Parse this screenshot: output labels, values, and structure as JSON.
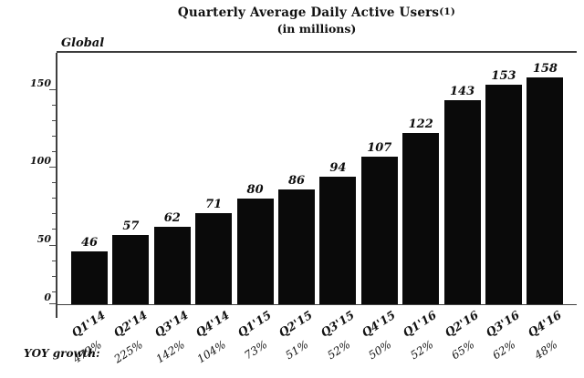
{
  "title": {
    "main": "Quarterly Average Daily Active Users",
    "footnote_marker": "(1)",
    "subtitle": "(in millions)"
  },
  "labels": {
    "region": "Global",
    "yoy_row": "YOY growth:"
  },
  "chart_data": {
    "type": "bar",
    "title": "Quarterly Average Daily Active Users(1)",
    "subtitle": "(in millions)",
    "region_label": "Global",
    "categories": [
      "Q1'14",
      "Q2'14",
      "Q3'14",
      "Q4'14",
      "Q1'15",
      "Q2'15",
      "Q3'15",
      "Q4'15",
      "Q1'16",
      "Q2'16",
      "Q3'16",
      "Q4'16"
    ],
    "values": [
      46,
      57,
      62,
      71,
      80,
      86,
      94,
      107,
      122,
      143,
      153,
      158
    ],
    "yoy_growth": [
      "472%",
      "225%",
      "142%",
      "104%",
      "73%",
      "51%",
      "52%",
      "50%",
      "52%",
      "65%",
      "62%",
      "48%"
    ],
    "xlabel": "",
    "ylabel": "",
    "ylim": [
      0,
      160
    ],
    "yticks": [
      0,
      50,
      100,
      150
    ],
    "minor_tick_step": 10,
    "grid": false,
    "legend": "none",
    "bar_color": "#0a0a0a",
    "axis_color": "#3f3f3f"
  }
}
